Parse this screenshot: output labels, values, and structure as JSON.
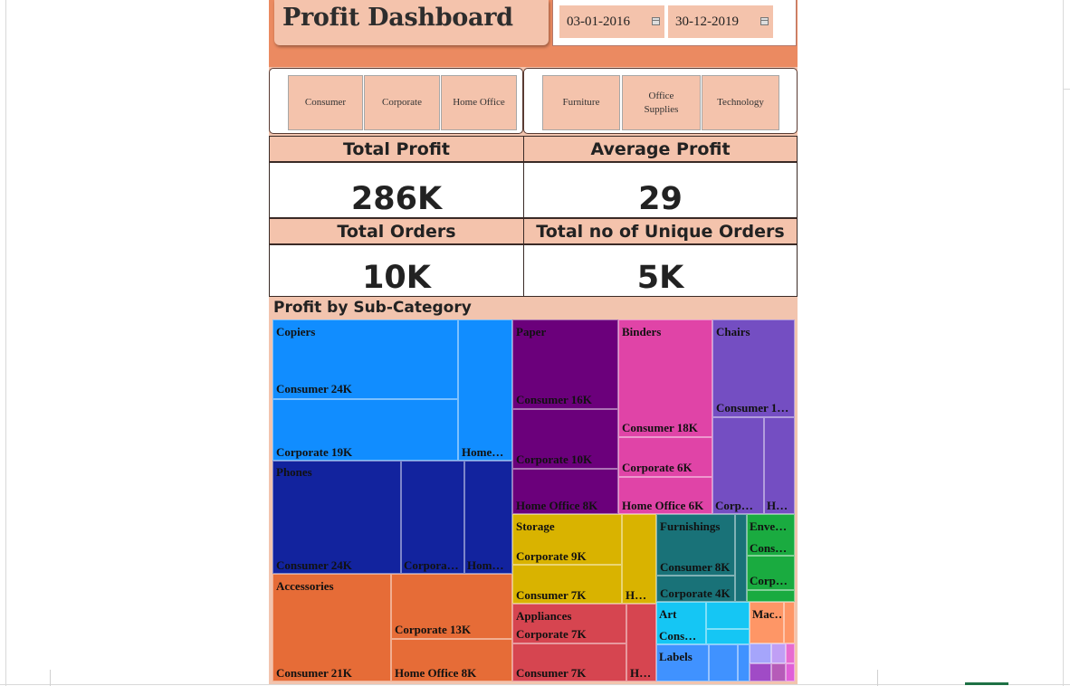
{
  "dashboard": {
    "title": "Profit Dashboard",
    "dates": {
      "start": "03-01-2016",
      "end": "30-12-2019"
    },
    "segment_slicer": [
      "Consumer",
      "Corporate",
      "Home Office"
    ],
    "category_slicer": [
      "Furniture",
      "Office Supplies",
      "Technology"
    ],
    "kpis": [
      {
        "label": "Total Profit",
        "value": "286K"
      },
      {
        "label": "Average Profit",
        "value": "29"
      },
      {
        "label": "Total Orders",
        "value": "10K"
      },
      {
        "label": "Total no of Unique Orders",
        "value": "5K"
      }
    ],
    "treemap": {
      "title": "Profit by Sub-Category",
      "groups": {
        "copiers": {
          "name": "Copiers",
          "consumer": "Consumer 24K",
          "corporate": "Corporate 19K",
          "home": "Home…"
        },
        "phones": {
          "name": "Phones",
          "consumer": "Consumer 24K",
          "corporate": "Corpora…",
          "home": "Hom…"
        },
        "accessories": {
          "name": "Accessories",
          "consumer": "Consumer 21K",
          "corporate": "Corporate 13K",
          "home": "Home Office 8K"
        },
        "paper": {
          "name": "Paper",
          "consumer": "Consumer 16K",
          "corporate": "Corporate 10K",
          "home": "Home Office 8K"
        },
        "binders": {
          "name": "Binders",
          "consumer": "Consumer 18K",
          "corporate": "Corporate 6K",
          "home": "Home Office 6K"
        },
        "chairs": {
          "name": "Chairs",
          "consumer": "Consumer 1…",
          "corporate": "Corp…",
          "home": "H…"
        },
        "storage": {
          "name": "Storage",
          "corporate": "Corporate 9K",
          "consumer": "Consumer 7K",
          "home": "H…"
        },
        "appliances": {
          "name": "Appliances",
          "corporate": "Corporate 7K",
          "consumer": "Consumer 7K",
          "home": "H…"
        },
        "furnishings": {
          "name": "Furnishings",
          "consumer": "Consumer 8K",
          "corporate": "Corporate 4K"
        },
        "envelopes": {
          "name": "Enve…",
          "consumer": "Cons…",
          "corporate": "Corp…"
        },
        "art": {
          "name": "Art",
          "consumer": "Cons…"
        },
        "machines": {
          "name": "Mac…"
        },
        "labels": {
          "name": "Labels"
        }
      }
    }
  },
  "colors": {
    "copiers": "#118dff",
    "phones": "#12239e",
    "accessories": "#e66c37",
    "paper": "#6b007b",
    "binders": "#e044a7",
    "chairs": "#744ec2",
    "storage": "#d9b300",
    "appliances": "#d64550",
    "furnishings": "#197278",
    "envelopes": "#1aab40",
    "art": "#15c6f4",
    "machines": "#fe9666",
    "labels": "#4092ff"
  }
}
